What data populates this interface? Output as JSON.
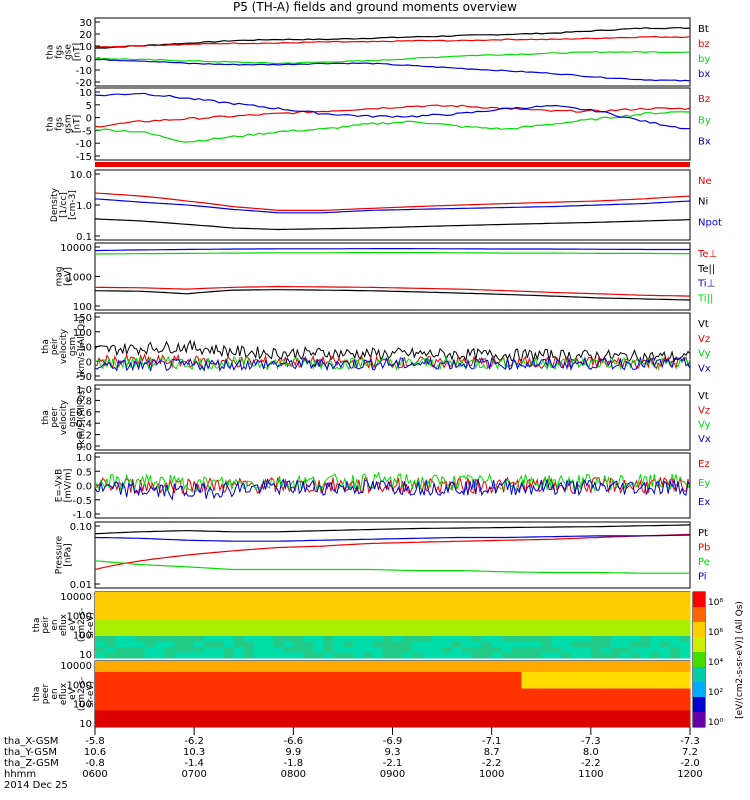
{
  "title": "P5 (TH-A) fields and ground moments overview",
  "colors": {
    "black": "#000000",
    "red": "#ee0000",
    "green": "#00dd00",
    "blue": "#0000dd",
    "axis": "#000000"
  },
  "chart_data": [
    {
      "id": "fgs_gse",
      "type": "line",
      "ylabel": [
        "tha",
        "fgs",
        "gse",
        "[nT]"
      ],
      "yticks": [
        "30",
        "20",
        "10",
        "0",
        "-10",
        "-20"
      ],
      "ylim": [
        -22,
        32
      ],
      "series": [
        {
          "name": "Bt",
          "color": "black",
          "values": [
            8,
            10,
            12,
            14,
            15,
            15,
            16,
            17,
            18,
            19,
            20,
            22,
            24,
            24
          ]
        },
        {
          "name": "bz",
          "color": "red",
          "values": [
            9,
            10,
            11,
            12,
            12,
            13,
            13,
            14,
            14,
            15,
            15,
            16,
            17,
            17
          ]
        },
        {
          "name": "by",
          "color": "green",
          "values": [
            0,
            -1,
            -2,
            -3,
            -4,
            -3,
            -2,
            0,
            2,
            3,
            4,
            5,
            5,
            5
          ]
        },
        {
          "name": "bx",
          "color": "blue",
          "values": [
            -1,
            -2,
            -4,
            -5,
            -5,
            -4,
            -4,
            -6,
            -8,
            -10,
            -12,
            -15,
            -17,
            -18
          ]
        }
      ]
    },
    {
      "id": "fgs_gsm",
      "type": "line",
      "ylabel": [
        "tha",
        "fgs",
        "gsm",
        "[nT]"
      ],
      "yticks": [
        "10",
        "5",
        "0",
        "-5",
        "-10",
        "-15"
      ],
      "ylim": [
        -17,
        11
      ],
      "series": [
        {
          "name": "Bz",
          "color": "red",
          "values": [
            -4,
            -2,
            -1,
            0,
            1,
            2,
            3,
            4,
            4,
            3,
            2,
            2,
            3,
            3
          ]
        },
        {
          "name": "By",
          "color": "green",
          "values": [
            -5,
            -6,
            -10,
            -8,
            -6,
            -5,
            -3,
            -2,
            -4,
            -5,
            -3,
            -1,
            1,
            2
          ]
        },
        {
          "name": "Bx",
          "color": "blue",
          "values": [
            8,
            9,
            7,
            5,
            3,
            1,
            0,
            0,
            1,
            3,
            4,
            2,
            -2,
            -5
          ]
        }
      ]
    },
    {
      "id": "density",
      "type": "line",
      "ylog": true,
      "ylabel": [
        "Density",
        "[1/cc]",
        "[cm-3]"
      ],
      "yticks": [
        "10.0",
        "1.0",
        "0.1"
      ],
      "ylim": [
        0.1,
        10
      ],
      "series": [
        {
          "name": "Ne",
          "color": "red",
          "values": [
            2.2,
            1.8,
            1.3,
            0.9,
            0.7,
            0.7,
            0.8,
            0.9,
            1.0,
            1.1,
            1.2,
            1.3,
            1.5,
            1.8
          ]
        },
        {
          "name": "Ni",
          "color": "black",
          "values": [
            0.4,
            0.35,
            0.28,
            0.22,
            0.2,
            0.21,
            0.22,
            0.24,
            0.26,
            0.28,
            0.3,
            0.32,
            0.35,
            0.38
          ]
        },
        {
          "name": "Npot",
          "color": "blue",
          "values": [
            1.5,
            1.2,
            1.0,
            0.75,
            0.6,
            0.6,
            0.7,
            0.75,
            0.8,
            0.85,
            0.9,
            1.0,
            1.1,
            1.3
          ]
        }
      ]
    },
    {
      "id": "temp",
      "type": "line",
      "ylog": true,
      "ylabel": [
        "mag",
        "[eV]"
      ],
      "yticks": [
        "10000",
        "1000",
        "100"
      ],
      "ylim": [
        50,
        10000
      ],
      "series": [
        {
          "name": "Te⊥",
          "color": "red",
          "values": [
            300,
            290,
            260,
            300,
            320,
            310,
            300,
            280,
            260,
            230,
            200,
            180,
            160,
            150
          ]
        },
        {
          "name": "Te||",
          "color": "black",
          "values": [
            230,
            220,
            180,
            240,
            250,
            240,
            230,
            210,
            190,
            170,
            150,
            130,
            120,
            110
          ]
        },
        {
          "name": "Ti⊥",
          "color": "blue",
          "values": [
            5500,
            5800,
            6000,
            6200,
            6300,
            6300,
            6400,
            6400,
            6300,
            6200,
            6200,
            6100,
            6000,
            6000
          ]
        },
        {
          "name": "Ti||",
          "color": "green",
          "values": [
            4200,
            4300,
            4400,
            4500,
            4600,
            4600,
            4700,
            4700,
            4600,
            4500,
            4500,
            4400,
            4400,
            4300
          ]
        }
      ]
    },
    {
      "id": "peir_vel",
      "type": "line",
      "noisy": true,
      "ylabel": [
        "tha",
        "peir",
        "velocity",
        "gsm",
        "[km/s](All Qs)"
      ],
      "yticks": [
        "150",
        "100",
        "50",
        "0",
        "-50"
      ],
      "ylim": [
        -50,
        150
      ],
      "series": [
        {
          "name": "Vt",
          "color": "black",
          "values": [
            40,
            45,
            50,
            35,
            30,
            30,
            28,
            28,
            26,
            25,
            24,
            22,
            20,
            18
          ]
        },
        {
          "name": "Vz",
          "color": "red",
          "values": [
            5,
            8,
            5,
            5,
            4,
            3,
            3,
            3,
            3,
            2,
            2,
            2,
            2,
            2
          ]
        },
        {
          "name": "Vy",
          "color": "green",
          "values": [
            0,
            2,
            0,
            1,
            0,
            0,
            0,
            0,
            0,
            0,
            0,
            0,
            0,
            0
          ]
        },
        {
          "name": "Vx",
          "color": "blue",
          "values": [
            -5,
            -8,
            -5,
            -3,
            -2,
            -2,
            -2,
            -1,
            -1,
            -1,
            -1,
            -1,
            -1,
            -1
          ]
        }
      ]
    },
    {
      "id": "peer_vel",
      "type": "line",
      "empty": true,
      "ylabel": [
        "tha",
        "peer",
        "velocity",
        "gsm",
        "[km/s](All Qs)"
      ],
      "yticks": [
        "1.0",
        "0.8",
        "0.6",
        "0.4",
        "0.2",
        "0.0"
      ],
      "ylim": [
        0,
        1
      ],
      "series": [
        {
          "name": "Vt",
          "color": "black"
        },
        {
          "name": "Vz",
          "color": "red"
        },
        {
          "name": "Vy",
          "color": "green"
        },
        {
          "name": "Vx",
          "color": "blue"
        }
      ]
    },
    {
      "id": "efield",
      "type": "line",
      "noisy": true,
      "ylabel": [
        "E=-VxB",
        "[mV/m]"
      ],
      "yticks": [
        "1.0",
        "0.5",
        "0.0",
        "-0.5",
        "-1.0"
      ],
      "ylim": [
        -1,
        1
      ],
      "series": [
        {
          "name": "Ez",
          "color": "red",
          "values": [
            0,
            0,
            0,
            0,
            0,
            0,
            0,
            0,
            0,
            0,
            0,
            0,
            0,
            0
          ]
        },
        {
          "name": "Ey",
          "color": "green",
          "values": [
            0.1,
            0.1,
            0.05,
            0.05,
            0.1,
            0.1,
            0.15,
            0.1,
            0.1,
            0.1,
            0.1,
            0.1,
            0.1,
            0.1
          ]
        },
        {
          "name": "Ex",
          "color": "blue",
          "values": [
            -0.1,
            -0.15,
            -0.2,
            -0.1,
            -0.05,
            -0.05,
            -0.05,
            -0.05,
            -0.05,
            -0.05,
            -0.05,
            -0.05,
            -0.05,
            -0.05
          ]
        }
      ]
    },
    {
      "id": "pressure",
      "type": "line",
      "ylog": true,
      "ylabel": [
        "Pressure",
        "[nPa]"
      ],
      "yticks": [
        "0.10",
        "0.01"
      ],
      "ylim": [
        0.01,
        0.5
      ],
      "series": [
        {
          "name": "Pt",
          "color": "black",
          "values": [
            0.25,
            0.28,
            0.3,
            0.28,
            0.28,
            0.3,
            0.32,
            0.34,
            0.35,
            0.36,
            0.37,
            0.38,
            0.4,
            0.42
          ]
        },
        {
          "name": "Pb",
          "color": "red",
          "values": [
            0.03,
            0.05,
            0.07,
            0.09,
            0.11,
            0.12,
            0.14,
            0.15,
            0.16,
            0.17,
            0.18,
            0.2,
            0.22,
            0.24
          ]
        },
        {
          "name": "Pe",
          "color": "green",
          "values": [
            0.05,
            0.04,
            0.035,
            0.03,
            0.03,
            0.03,
            0.03,
            0.028,
            0.028,
            0.026,
            0.025,
            0.025,
            0.024,
            0.024
          ]
        },
        {
          "name": "Pi",
          "color": "blue",
          "values": [
            0.2,
            0.19,
            0.17,
            0.16,
            0.16,
            0.17,
            0.18,
            0.19,
            0.2,
            0.2,
            0.21,
            0.22,
            0.22,
            0.23
          ]
        }
      ]
    },
    {
      "id": "peir_spec",
      "type": "heatmap",
      "ylabel": [
        "tha",
        "peir",
        "en",
        "eflux",
        "eV",
        "(cm2-s-",
        "sr-eV)"
      ],
      "yticks": [
        "10000",
        "1000",
        "100",
        "10"
      ]
    },
    {
      "id": "peer_spec",
      "type": "heatmap",
      "ylabel": [
        "tha",
        "peer",
        "en",
        "eflux",
        "eV",
        "(cm2-s-",
        "sr-eV)"
      ],
      "yticks": [
        "10000",
        "1000",
        "100",
        "10"
      ]
    }
  ],
  "colorbar": {
    "label": "[eV/(cm2-s-sr-eV)] (All Qs)",
    "ticks": [
      "10⁸",
      "10⁶",
      "10⁴",
      "10²",
      "10⁰"
    ]
  },
  "xaxis": {
    "rows": [
      {
        "label": "tha_X-GSM",
        "values": [
          "-5.8",
          "-6.2",
          "-6.6",
          "-6.9",
          "-7.1",
          "-7.3",
          "-7.3"
        ]
      },
      {
        "label": "tha_Y-GSM",
        "values": [
          "10.6",
          "10.3",
          "9.9",
          "9.3",
          "8.7",
          "8.0",
          "7.2"
        ]
      },
      {
        "label": "tha_Z-GSM",
        "values": [
          "-0.8",
          "-1.4",
          "-1.8",
          "-2.1",
          "-2.2",
          "-2.2",
          "-2.0"
        ]
      },
      {
        "label": "hhmm",
        "values": [
          "0600",
          "0700",
          "0800",
          "0900",
          "1000",
          "1100",
          "1200"
        ]
      }
    ],
    "date": "2014 Dec 25"
  }
}
